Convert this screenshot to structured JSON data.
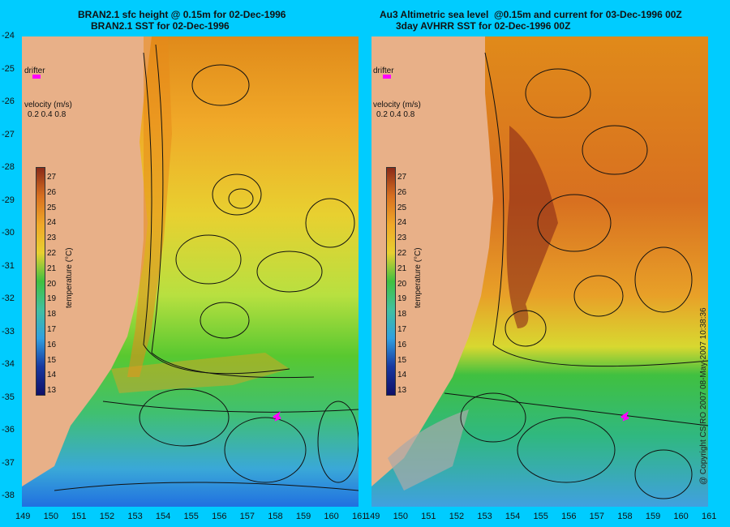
{
  "left_panel": {
    "title_line1": "BRAN2.1 sfc height @ 0.15m for 02-Dec-1996",
    "title_line2": "BRAN2.1 SST for 02-Dec-1996"
  },
  "right_panel": {
    "title_line1": "Au3 Altimetric sea level  @0.15m and current for 03-Dec-1996 00Z",
    "title_line2": "3day AVHRR SST for 02-Dec-1996 00Z"
  },
  "legend": {
    "drifter": "drifter",
    "velocity_title": "velocity (m/s)",
    "velocity_scale": "0.2 0.4 0.8",
    "colorbar_title": "temperature (°C)",
    "colorbar_ticks": [
      "27",
      "26",
      "25",
      "24",
      "23",
      "22",
      "21",
      "20",
      "19",
      "18",
      "17",
      "16",
      "15",
      "14",
      "13"
    ]
  },
  "axes": {
    "left_lon_ticks": [
      "149",
      "150",
      "151",
      "152",
      "153",
      "154",
      "155",
      "156",
      "157",
      "158",
      "159",
      "160",
      "161"
    ],
    "right_lon_ticks": [
      "149",
      "150",
      "151",
      "152",
      "153",
      "154",
      "155",
      "156",
      "157",
      "158",
      "159",
      "160",
      "161"
    ],
    "lat_ticks": [
      "-24",
      "-25",
      "-26",
      "-27",
      "-28",
      "-29",
      "-30",
      "-31",
      "-32",
      "-33",
      "-34",
      "-35",
      "-36",
      "-37",
      "-38"
    ]
  },
  "copyright": "@ Copyright CSIRO 2007   08-May-2007 10:38:36",
  "colors": {
    "background": "#00ccff",
    "land": "#e8b088",
    "drifter": "#ff00ff"
  }
}
